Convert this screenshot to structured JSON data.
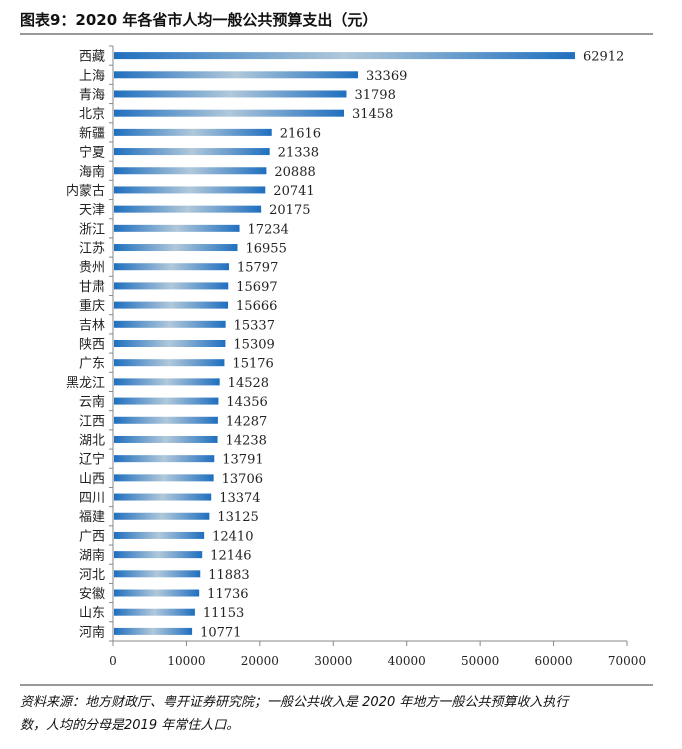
{
  "title": "图表9：2020 年各省市人均一般公共预算支出（元）",
  "footnote_line1": "资料来源：地方财政厅、粤开证券研究院；一般公共收入是 2020 年地方一般公共预算收入执行",
  "footnote_line2": "数，人均的分母是2019 年常住人口。",
  "chart_data": {
    "type": "bar",
    "orientation": "horizontal",
    "categories": [
      "西藏",
      "上海",
      "青海",
      "北京",
      "新疆",
      "宁夏",
      "海南",
      "内蒙古",
      "天津",
      "浙江",
      "江苏",
      "贵州",
      "甘肃",
      "重庆",
      "吉林",
      "陕西",
      "广东",
      "黑龙江",
      "云南",
      "江西",
      "湖北",
      "辽宁",
      "山西",
      "四川",
      "福建",
      "广西",
      "湖南",
      "河北",
      "安徽",
      "山东",
      "河南"
    ],
    "values": [
      62912,
      33369,
      31798,
      31458,
      21616,
      21338,
      20888,
      20741,
      20175,
      17234,
      16955,
      15797,
      15697,
      15666,
      15337,
      15309,
      15176,
      14528,
      14356,
      14287,
      14238,
      13791,
      13706,
      13374,
      13125,
      12410,
      12146,
      11883,
      11736,
      11153,
      10771
    ],
    "xlim": [
      0,
      70000
    ],
    "xticks": [
      0,
      10000,
      20000,
      30000,
      40000,
      50000,
      60000,
      70000
    ],
    "grid": false,
    "bar_color_end": "#1f6fbf",
    "bar_color_mid": "#b0c8da"
  }
}
